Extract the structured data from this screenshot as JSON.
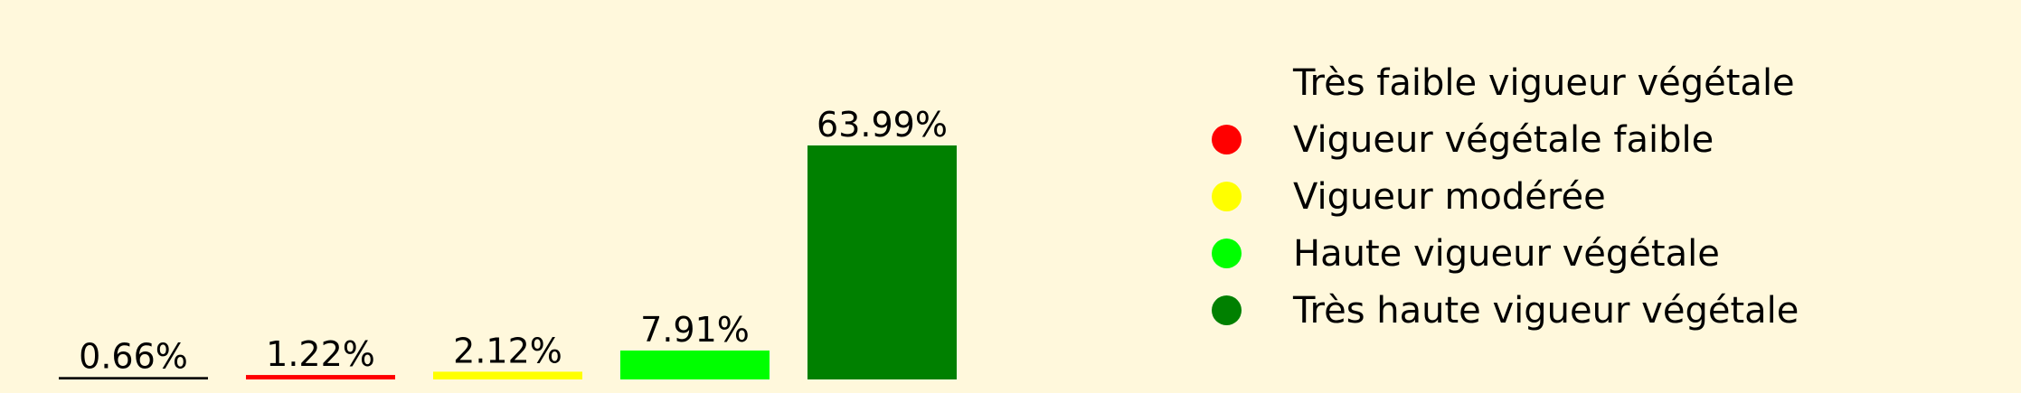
{
  "chart_data": {
    "type": "bar",
    "categories": [
      "Très faible vigueur végétale",
      "Vigueur végétale faible",
      "Vigueur modérée",
      "Haute vigueur végétale",
      "Très haute vigueur végétale"
    ],
    "values": [
      0.66,
      1.22,
      2.12,
      7.91,
      63.99
    ],
    "value_labels": [
      "0.66%",
      "1.22%",
      "2.12%",
      "7.91%",
      "63.99%"
    ],
    "colors": [
      "#000000",
      "#ff0000",
      "#ffff00",
      "#00ff00",
      "#008000"
    ],
    "ylim": [
      0,
      63.99
    ],
    "grid": false,
    "legend_position": "right",
    "title": "",
    "xlabel": "",
    "ylabel": ""
  },
  "legend": {
    "items": [
      {
        "label": "Très faible vigueur végétale",
        "color": "#fff8dc"
      },
      {
        "label": "Vigueur végétale faible",
        "color": "#ff0000"
      },
      {
        "label": "Vigueur modérée",
        "color": "#ffff00"
      },
      {
        "label": "Haute vigueur végétale",
        "color": "#00ff00"
      },
      {
        "label": "Très haute vigueur végétale",
        "color": "#008000"
      }
    ]
  }
}
